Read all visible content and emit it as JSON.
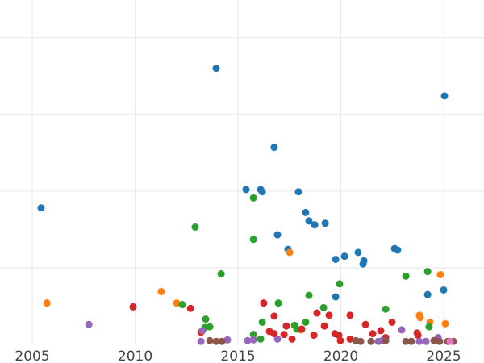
{
  "chart_data": {
    "type": "scatter",
    "title": "",
    "xlabel": "",
    "ylabel": "",
    "xlim": [
      2003.43,
      2026.96
    ],
    "ylim": [
      0,
      4.49
    ],
    "x_ticks": [
      2005,
      2010,
      2015,
      2020,
      2025
    ],
    "x_tick_labels": [
      "2005",
      "2010",
      "2015",
      "2020",
      "2025"
    ],
    "y_gridlines": [
      1,
      2,
      3,
      4
    ],
    "y_tick_labels_shown": false,
    "grid": true,
    "legend": "none",
    "series": [
      {
        "color": "#1f77b4",
        "points": [
          [
            2013.94,
            3.6
          ],
          [
            2025.04,
            3.24
          ],
          [
            2016.76,
            2.57
          ],
          [
            2005.43,
            1.78
          ],
          [
            2015.39,
            2.02
          ],
          [
            2016.1,
            2.02
          ],
          [
            2016.18,
            1.99
          ],
          [
            2017.94,
            1.99
          ],
          [
            2018.29,
            1.72
          ],
          [
            2018.45,
            1.61
          ],
          [
            2018.73,
            1.56
          ],
          [
            2019.24,
            1.58
          ],
          [
            2016.92,
            1.43
          ],
          [
            2017.43,
            1.24
          ],
          [
            2019.75,
            1.11
          ],
          [
            2020.18,
            1.15
          ],
          [
            2020.84,
            1.2
          ],
          [
            2021.12,
            1.09
          ],
          [
            2021.08,
            1.05
          ],
          [
            2022.61,
            1.25
          ],
          [
            2022.76,
            1.23
          ],
          [
            2025.0,
            0.71
          ],
          [
            2019.75,
            0.62
          ],
          [
            2024.22,
            0.65
          ]
        ]
      },
      {
        "color": "#ff7f0e",
        "points": [
          [
            2005.71,
            0.54
          ],
          [
            2011.27,
            0.69
          ],
          [
            2012.02,
            0.54
          ],
          [
            2017.51,
            1.2
          ],
          [
            2018.06,
            0.19
          ],
          [
            2024.84,
            0.91
          ],
          [
            2023.82,
            0.38
          ],
          [
            2023.86,
            0.35
          ],
          [
            2024.33,
            0.29
          ],
          [
            2025.08,
            0.27
          ]
        ]
      },
      {
        "color": "#2ca02c",
        "points": [
          [
            2012.92,
            1.53
          ],
          [
            2015.75,
            1.91
          ],
          [
            2015.75,
            1.37
          ],
          [
            2014.18,
            0.92
          ],
          [
            2012.29,
            0.52
          ],
          [
            2013.43,
            0.33
          ],
          [
            2013.39,
            0.22
          ],
          [
            2013.63,
            0.23
          ],
          [
            2016.18,
            0.29
          ],
          [
            2016.96,
            0.54
          ],
          [
            2018.45,
            0.64
          ],
          [
            2019.94,
            0.79
          ],
          [
            2023.16,
            0.89
          ],
          [
            2024.22,
            0.95
          ],
          [
            2022.18,
            0.46
          ],
          [
            2019.16,
            0.48
          ],
          [
            2018.29,
            0.29
          ],
          [
            2017.75,
            0.25
          ],
          [
            2017.86,
            0.2
          ],
          [
            2015.75,
            0.13
          ],
          [
            2016.1,
            0.07
          ],
          [
            2024.29,
            0.23
          ]
        ]
      },
      {
        "color": "#d62728",
        "points": [
          [
            2009.9,
            0.49
          ],
          [
            2012.69,
            0.47
          ],
          [
            2013.2,
            0.16
          ],
          [
            2016.25,
            0.54
          ],
          [
            2016.76,
            0.37
          ],
          [
            2016.53,
            0.17
          ],
          [
            2016.76,
            0.14
          ],
          [
            2017.35,
            0.24
          ],
          [
            2017.24,
            0.13
          ],
          [
            2017.63,
            0.07
          ],
          [
            2018.1,
            0.2
          ],
          [
            2018.69,
            0.12
          ],
          [
            2018.84,
            0.41
          ],
          [
            2019.2,
            0.24
          ],
          [
            2019.43,
            0.38
          ],
          [
            2019.71,
            0.14
          ],
          [
            2019.9,
            0.12
          ],
          [
            2019.98,
            0.05
          ],
          [
            2020.45,
            0.38
          ],
          [
            2020.45,
            0.07
          ],
          [
            2021.2,
            0.26
          ],
          [
            2021.55,
            0.14
          ],
          [
            2021.94,
            0.18
          ],
          [
            2022.18,
            0.09
          ],
          [
            2022.49,
            0.29
          ],
          [
            2023.71,
            0.15
          ],
          [
            2023.75,
            0.12
          ]
        ]
      },
      {
        "color": "#9467bd",
        "points": [
          [
            2007.75,
            0.26
          ],
          [
            2013.2,
            0.04
          ],
          [
            2013.27,
            0.18
          ],
          [
            2014.49,
            0.06
          ],
          [
            2015.47,
            0.05
          ],
          [
            2015.75,
            0.06
          ],
          [
            2016.92,
            0.07
          ],
          [
            2022.96,
            0.19
          ],
          [
            2024.73,
            0.09
          ],
          [
            2024.14,
            0.04
          ],
          [
            2023.82,
            0.04
          ],
          [
            2022.02,
            0.05
          ],
          [
            2021.82,
            0.04
          ]
        ]
      },
      {
        "color": "#8c564b",
        "points": [
          [
            2013.63,
            0.05
          ],
          [
            2013.94,
            0.04
          ],
          [
            2014.22,
            0.04
          ],
          [
            2020.73,
            0.05
          ],
          [
            2020.96,
            0.04
          ],
          [
            2021.47,
            0.04
          ],
          [
            2023.16,
            0.04
          ],
          [
            2023.43,
            0.04
          ],
          [
            2024.53,
            0.05
          ],
          [
            2024.8,
            0.04
          ],
          [
            2025.2,
            0.04
          ],
          [
            2025.47,
            0.04
          ],
          [
            2022.18,
            0.05
          ]
        ]
      },
      {
        "color": "#e377c2",
        "points": [
          [
            2025.31,
            0.04
          ]
        ]
      }
    ]
  }
}
